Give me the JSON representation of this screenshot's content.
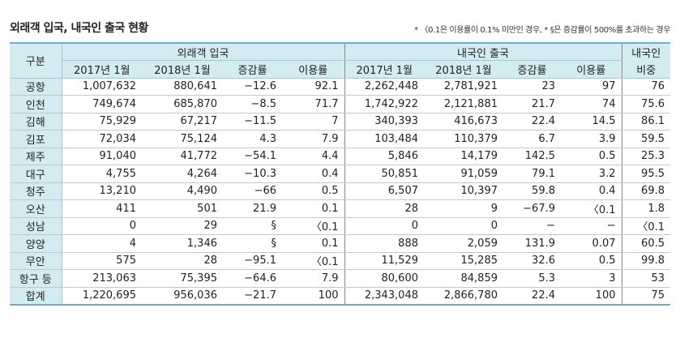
{
  "title": "외래객 입국, 내국인 출국 현황",
  "note": "* 〈0.1은 이용률이 0.1% 미만인 경우, * §은 증감률이 500%를 초과하는 경우",
  "header": {
    "group_label": "구분",
    "inbound": "외래객 입국",
    "outbound": "내국인 출국",
    "domestic_ratio_line1": "내국인",
    "domestic_ratio_line2": "비중",
    "sub": [
      "2017년 1월",
      "2018년 1월",
      "증감률",
      "이용률",
      "2017년 1월",
      "2018년 1월",
      "증감률",
      "이용률"
    ]
  },
  "rows": [
    {
      "name": "공항",
      "v": [
        "1,007,632",
        "880,641",
        "−12.6",
        "92.1",
        "2,262,448",
        "2,781,921",
        "23",
        "97",
        "76"
      ]
    },
    {
      "name": "인천",
      "v": [
        "749,674",
        "685,870",
        "−8.5",
        "71.7",
        "1,742,922",
        "2,121,881",
        "21.7",
        "74",
        "75.6"
      ]
    },
    {
      "name": "김해",
      "v": [
        "75,929",
        "67,217",
        "−11.5",
        "7",
        "340,393",
        "416,673",
        "22.4",
        "14.5",
        "86.1"
      ]
    },
    {
      "name": "김포",
      "v": [
        "72,034",
        "75,124",
        "4.3",
        "7.9",
        "103,484",
        "110,379",
        "6.7",
        "3.9",
        "59.5"
      ]
    },
    {
      "name": "제주",
      "v": [
        "91,040",
        "41,772",
        "−54.1",
        "4.4",
        "5,846",
        "14,179",
        "142.5",
        "0.5",
        "25.3"
      ]
    },
    {
      "name": "대구",
      "v": [
        "4,755",
        "4,264",
        "−10.3",
        "0.4",
        "50,851",
        "91,059",
        "79.1",
        "3.2",
        "95.5"
      ]
    },
    {
      "name": "청주",
      "v": [
        "13,210",
        "4,490",
        "−66",
        "0.5",
        "6,507",
        "10,397",
        "59.8",
        "0.4",
        "69.8"
      ]
    },
    {
      "name": "오산",
      "v": [
        "411",
        "501",
        "21.9",
        "0.1",
        "28",
        "9",
        "−67.9",
        "〈0.1",
        "1.8"
      ]
    },
    {
      "name": "성남",
      "v": [
        "0",
        "29",
        "§",
        "〈0.1",
        "0",
        "0",
        "−",
        "−",
        "〈0.1"
      ]
    },
    {
      "name": "양양",
      "v": [
        "4",
        "1,346",
        "§",
        "0.1",
        "888",
        "2,059",
        "131.9",
        "0.07",
        "60.5"
      ]
    },
    {
      "name": "무안",
      "v": [
        "575",
        "28",
        "−95.1",
        "〈0.1",
        "11,529",
        "15,285",
        "32.6",
        "0.5",
        "99.8"
      ]
    },
    {
      "name": "항구 등",
      "v": [
        "213,063",
        "75,395",
        "−64.6",
        "7.9",
        "80,600",
        "84,859",
        "5.3",
        "3",
        "53"
      ]
    },
    {
      "name": "합계",
      "v": [
        "1,220,695",
        "956,036",
        "−21.7",
        "100",
        "2,343,048",
        "2,866,780",
        "22.4",
        "100",
        "75"
      ]
    }
  ]
}
